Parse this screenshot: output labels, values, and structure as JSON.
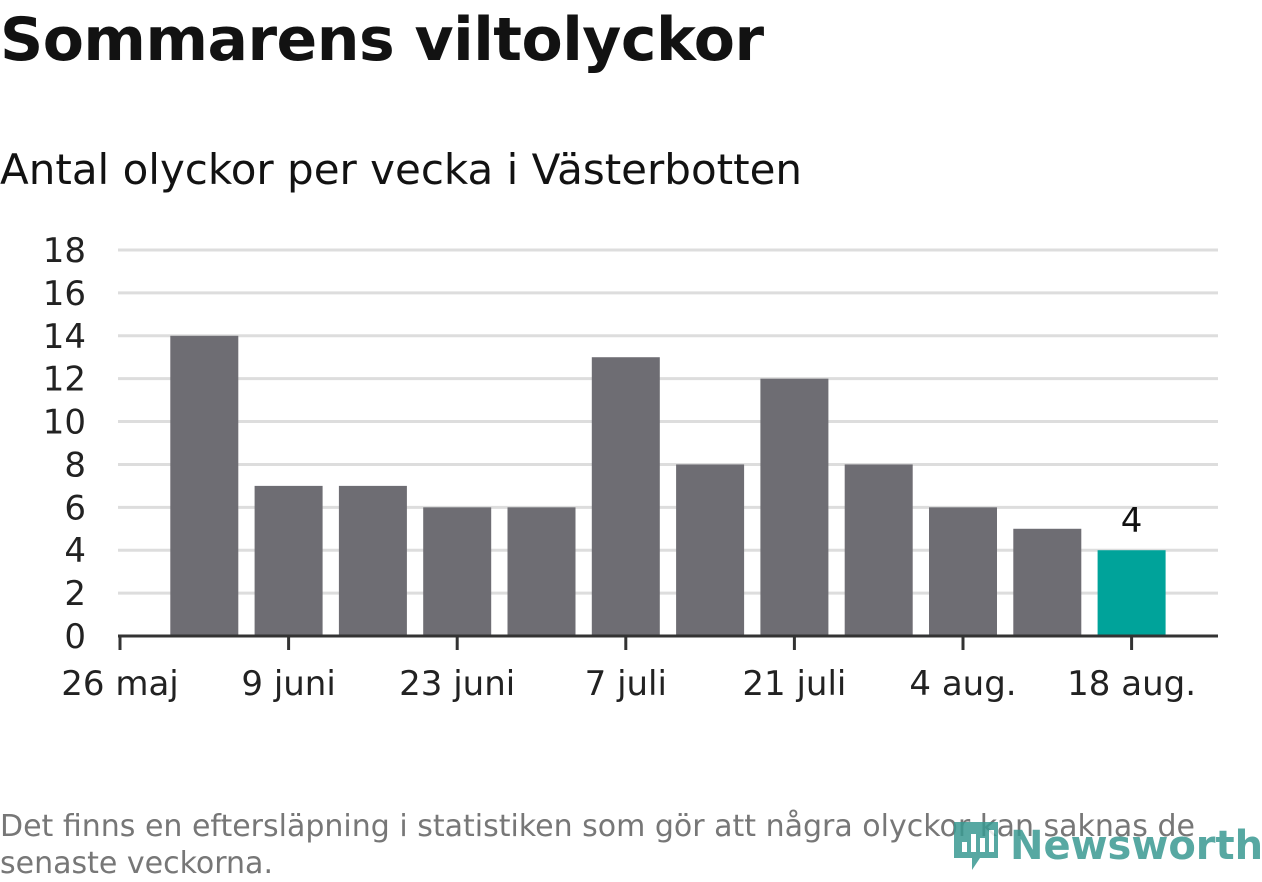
{
  "title": "Sommarens viltolyckor",
  "subtitle": "Antal olyckor per vecka i Västerbotten",
  "note": "Det finns en eftersläpning i statistiken som gör att några olyckor kan saknas de senaste veckorna.",
  "logo_text": "Newsworthy",
  "colors": {
    "bar": "#6e6d73",
    "highlight": "#00a39a",
    "grid": "#dddddd",
    "axis": "#333333",
    "logo": "#3a9a92"
  },
  "chart_data": {
    "type": "bar",
    "title": "Sommarens viltolyckor",
    "subtitle": "Antal olyckor per vecka i Västerbotten",
    "x_tick_labels": [
      "26 maj",
      "9 juni",
      "23 juni",
      "7 juli",
      "21 juli",
      "4 aug.",
      "18 aug."
    ],
    "y_ticks": [
      0,
      2,
      4,
      6,
      8,
      10,
      12,
      14,
      16,
      18
    ],
    "ylim": [
      0,
      18
    ],
    "grid": true,
    "values": [
      14,
      7,
      7,
      6,
      6,
      13,
      8,
      12,
      8,
      6,
      5,
      4
    ],
    "highlight_index": 11,
    "data_labels": [
      {
        "index": 11,
        "text": "4"
      }
    ]
  }
}
